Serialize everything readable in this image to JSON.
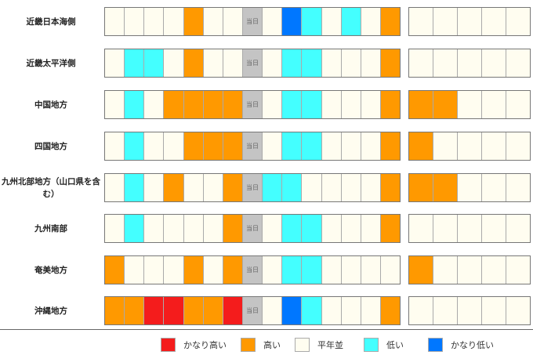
{
  "colors": {
    "R": "#f41c1c",
    "O": "#ff9900",
    "W": "#fffdf0",
    "C": "#44ffff",
    "B": "#0077ff",
    "T": "#c4c4c4"
  },
  "today_label": "当日",
  "rows": [
    {
      "name": "近畿日本海側",
      "main": "WWWWOWWTWBCWCWO",
      "ext": "WWWWW"
    },
    {
      "name": "近畿太平洋側",
      "main": "WCCWOWWTWCCWWWO",
      "ext": "WWWWW"
    },
    {
      "name": "中国地方",
      "main": "WCWOOOOTWCCWWWO",
      "ext": "OOWWW"
    },
    {
      "name": "四国地方",
      "main": "WCWWOOOTWCCWWWO",
      "ext": "OWWWW"
    },
    {
      "name": "九州北部地方（山口県を含む）",
      "main": "WCWOWWOTCCWWWWO",
      "ext": "OOWWW"
    },
    {
      "name": "九州南部",
      "main": "WCWWWWOTWCCWWWO",
      "ext": "WWWWW"
    },
    {
      "name": "奄美地方",
      "main": "OWWWOWOTWCCWWWW",
      "ext": "OWWWW"
    },
    {
      "name": "沖縄地方",
      "main": "OORROORTWBCWWWO",
      "ext": "WWWWW"
    }
  ],
  "legend": [
    {
      "key": "R",
      "label": "かなり高い"
    },
    {
      "key": "O",
      "label": "高い"
    },
    {
      "key": "W",
      "label": "平年並"
    },
    {
      "key": "C",
      "label": "低い"
    },
    {
      "key": "B",
      "label": "かなり低い"
    }
  ]
}
